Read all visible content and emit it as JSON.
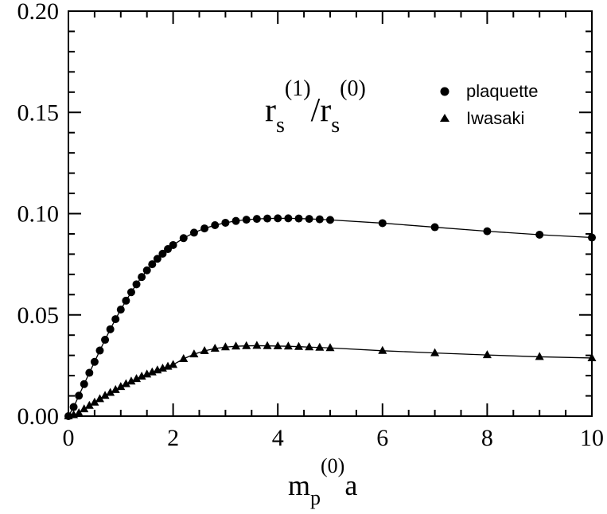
{
  "chart_data": {
    "type": "line",
    "xlim": [
      0,
      10
    ],
    "ylim": [
      0,
      0.2
    ],
    "x_ticks": [
      "0",
      "2",
      "4",
      "6",
      "8",
      "10"
    ],
    "y_ticks": [
      "0.00",
      "0.05",
      "0.10",
      "0.15",
      "0.20"
    ],
    "xlabel": {
      "main": "m",
      "sub": "p",
      "sup": "(0)",
      "tail": "a"
    },
    "annotation": {
      "r1": "r",
      "s1": "s",
      "sup1": "(1)",
      "slash": "/",
      "r2": "r",
      "s2": "s",
      "sup2": "(0)"
    },
    "grid": false,
    "legend_position": "top-right",
    "series": [
      {
        "name": "plaquette",
        "marker": "circle",
        "x": [
          0,
          0.1,
          0.2,
          0.3,
          0.4,
          0.5,
          0.6,
          0.7,
          0.8,
          0.9,
          1.0,
          1.1,
          1.2,
          1.3,
          1.4,
          1.5,
          1.6,
          1.7,
          1.8,
          1.9,
          2.0,
          2.2,
          2.4,
          2.6,
          2.8,
          3.0,
          3.2,
          3.4,
          3.6,
          3.8,
          4.0,
          4.2,
          4.4,
          4.6,
          4.8,
          5.0,
          6,
          7,
          8,
          9,
          10
        ],
        "y": [
          0.0,
          0.0045,
          0.0101,
          0.0158,
          0.0214,
          0.0268,
          0.0324,
          0.0377,
          0.0429,
          0.0479,
          0.0526,
          0.057,
          0.0612,
          0.0651,
          0.0687,
          0.072,
          0.075,
          0.0777,
          0.0802,
          0.0825,
          0.0845,
          0.0879,
          0.0906,
          0.0927,
          0.0943,
          0.0955,
          0.0964,
          0.097,
          0.0974,
          0.0976,
          0.0977,
          0.0977,
          0.0976,
          0.0974,
          0.0972,
          0.0969,
          0.0953,
          0.0933,
          0.0913,
          0.0896,
          0.0882
        ]
      },
      {
        "name": "Iwasaki",
        "marker": "triangle",
        "x": [
          0,
          0.1,
          0.2,
          0.3,
          0.4,
          0.5,
          0.6,
          0.7,
          0.8,
          0.9,
          1.0,
          1.1,
          1.2,
          1.3,
          1.4,
          1.5,
          1.6,
          1.7,
          1.8,
          1.9,
          2.0,
          2.2,
          2.4,
          2.6,
          2.8,
          3.0,
          3.2,
          3.4,
          3.6,
          3.8,
          4.0,
          4.2,
          4.4,
          4.6,
          4.8,
          5.0,
          6,
          7,
          8,
          9,
          10
        ],
        "y": [
          0.0,
          0.0006,
          0.0015,
          0.0035,
          0.0052,
          0.0068,
          0.0085,
          0.0101,
          0.0116,
          0.013,
          0.0145,
          0.0159,
          0.0172,
          0.0184,
          0.0196,
          0.0207,
          0.0217,
          0.0227,
          0.0236,
          0.0245,
          0.0254,
          0.0283,
          0.0306,
          0.0322,
          0.0334,
          0.0341,
          0.0345,
          0.0347,
          0.0348,
          0.0347,
          0.0346,
          0.0345,
          0.0343,
          0.0341,
          0.0339,
          0.0337,
          0.0323,
          0.0312,
          0.0302,
          0.0293,
          0.0287
        ]
      }
    ]
  }
}
